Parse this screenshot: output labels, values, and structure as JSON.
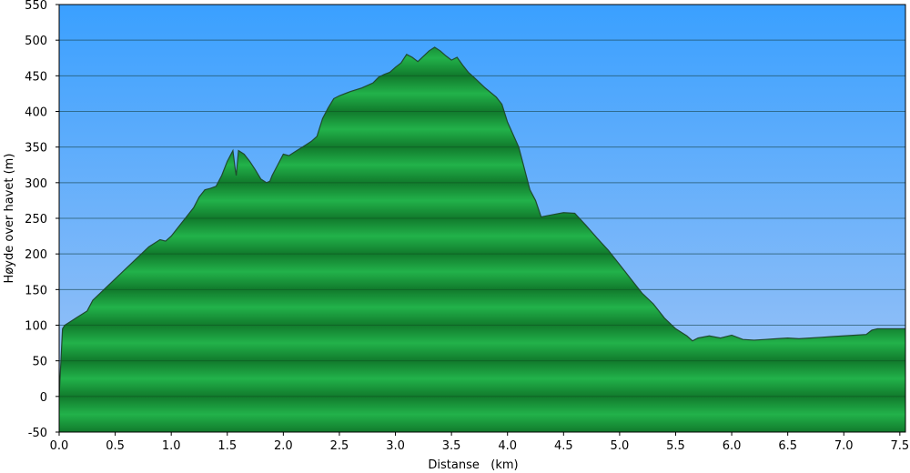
{
  "chart_data": {
    "type": "area",
    "xlabel": "Distanse   (km)",
    "ylabel": "Høyde over havet (m)",
    "xlim": [
      0,
      7.55
    ],
    "ylim": [
      -50,
      550
    ],
    "x_ticks": [
      "0.0",
      "0.5",
      "1.0",
      "1.5",
      "2.0",
      "2.5",
      "3.0",
      "3.5",
      "4.0",
      "4.5",
      "5.0",
      "5.5",
      "6.0",
      "6.5",
      "7.0",
      "7.5"
    ],
    "y_ticks": [
      "-50",
      "0",
      "50",
      "100",
      "150",
      "200",
      "250",
      "300",
      "350",
      "400",
      "450",
      "500",
      "550"
    ],
    "grid": "horizontal",
    "colors": {
      "sky_top": "#3aa0ff",
      "sky_bottom": "#a5c6f5",
      "terrain_light": "#22b24a",
      "terrain_dark": "#117a2c",
      "outline": "#1f4a2e"
    },
    "series": [
      {
        "x": [
          0.0,
          0.03,
          0.05,
          0.1,
          0.15,
          0.2,
          0.25,
          0.3,
          0.4,
          0.5,
          0.6,
          0.7,
          0.8,
          0.9,
          0.95,
          1.0,
          1.05,
          1.1,
          1.15,
          1.2,
          1.25,
          1.3,
          1.35,
          1.4,
          1.45,
          1.5,
          1.55,
          1.57,
          1.58,
          1.6,
          1.65,
          1.7,
          1.75,
          1.8,
          1.85,
          1.88,
          1.9,
          1.95,
          2.0,
          2.05,
          2.1,
          2.15,
          2.2,
          2.25,
          2.3,
          2.35,
          2.4,
          2.45,
          2.5,
          2.6,
          2.7,
          2.8,
          2.85,
          2.9,
          2.95,
          3.0,
          3.05,
          3.1,
          3.15,
          3.2,
          3.3,
          3.35,
          3.4,
          3.45,
          3.5,
          3.55,
          3.6,
          3.65,
          3.7,
          3.8,
          3.9,
          3.95,
          4.0,
          4.1,
          4.15,
          4.2,
          4.25,
          4.3,
          4.4,
          4.5,
          4.6,
          4.7,
          4.8,
          4.9,
          5.0,
          5.1,
          5.2,
          5.3,
          5.4,
          5.5,
          5.6,
          5.65,
          5.7,
          5.8,
          5.9,
          6.0,
          6.1,
          6.2,
          6.3,
          6.4,
          6.5,
          6.6,
          6.7,
          6.8,
          6.9,
          7.0,
          7.1,
          7.2,
          7.25,
          7.3,
          7.4,
          7.5,
          7.55
        ],
        "y": [
          0,
          95,
          100,
          105,
          110,
          115,
          120,
          135,
          150,
          165,
          180,
          195,
          210,
          220,
          218,
          225,
          235,
          245,
          255,
          265,
          280,
          290,
          292,
          295,
          310,
          330,
          345,
          320,
          310,
          345,
          340,
          330,
          318,
          305,
          300,
          302,
          310,
          325,
          340,
          338,
          343,
          348,
          353,
          358,
          365,
          390,
          405,
          418,
          422,
          428,
          433,
          440,
          448,
          452,
          455,
          462,
          468,
          480,
          476,
          470,
          485,
          490,
          485,
          478,
          472,
          476,
          465,
          455,
          448,
          433,
          420,
          410,
          385,
          350,
          320,
          290,
          275,
          252,
          255,
          258,
          257,
          240,
          222,
          205,
          185,
          165,
          145,
          130,
          110,
          95,
          85,
          78,
          82,
          85,
          82,
          86,
          80,
          79,
          80,
          81,
          82,
          81,
          82,
          83,
          84,
          85,
          86,
          87,
          93,
          95,
          95,
          95,
          95
        ]
      }
    ]
  }
}
